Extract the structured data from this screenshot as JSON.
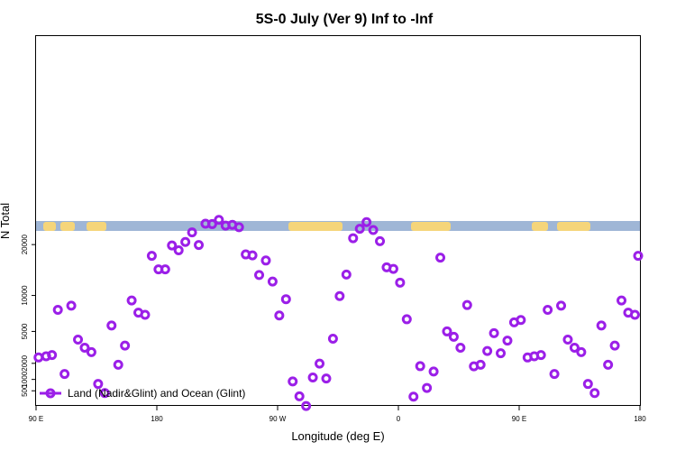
{
  "chart_data": {
    "type": "scatter",
    "title": "5S-0 July (Ver 9)   Inf to -Inf",
    "xlabel": "Longitude (deg E)",
    "ylabel": "N Total",
    "x_range": [
      90,
      450
    ],
    "x_ticks": [
      {
        "value": 90,
        "label": "90 E"
      },
      {
        "value": 162,
        "label": "180"
      },
      {
        "value": 234,
        "label": "90 W"
      },
      {
        "value": 306,
        "label": "0"
      },
      {
        "value": 378,
        "label": "90 E"
      },
      {
        "value": 450,
        "label": "180"
      }
    ],
    "y_scale": "sqrt",
    "y_ticks": [
      {
        "value": 500,
        "label": "500"
      },
      {
        "value": 1000,
        "label": "1000"
      },
      {
        "value": 2000,
        "label": "2000"
      },
      {
        "value": 5000,
        "label": "5000"
      },
      {
        "value": 10000,
        "label": "10000"
      },
      {
        "value": 20000,
        "label": "20000"
      }
    ],
    "legend": {
      "label": "Land (Nadir&Glint) and Ocean (Glint)",
      "position": "bottom-left",
      "color": "#9b1fe8"
    },
    "band": {
      "ocean_color": "#9fb6d6",
      "land_color": "#f5d57a"
    },
    "series": [
      {
        "name": "Land (Nadir&Glint) and Ocean (Glint)",
        "color": "#9b1fe8",
        "points": [
          [
            91.5,
            2450
          ],
          [
            96,
            2550
          ],
          [
            99.5,
            2650
          ],
          [
            103,
            7800
          ],
          [
            107,
            1300
          ],
          [
            111,
            8400
          ],
          [
            115,
            4100
          ],
          [
            119,
            3300
          ],
          [
            123,
            2900
          ],
          [
            127,
            780
          ],
          [
            131,
            420
          ],
          [
            135,
            5700
          ],
          [
            139,
            1900
          ],
          [
            143,
            3500
          ],
          [
            147,
            9200
          ],
          [
            151,
            7400
          ],
          [
            155,
            7100
          ],
          [
            159,
            17500
          ],
          [
            163,
            14700
          ],
          [
            167,
            14700
          ],
          [
            171,
            19800
          ],
          [
            175,
            18700
          ],
          [
            179,
            20600
          ],
          [
            183,
            22900
          ],
          [
            187,
            19900
          ],
          [
            191,
            25100
          ],
          [
            195,
            25000
          ],
          [
            199,
            26100
          ],
          [
            203,
            24600
          ],
          [
            207,
            24800
          ],
          [
            211,
            24200
          ],
          [
            215,
            17800
          ],
          [
            219,
            17600
          ],
          [
            223,
            13600
          ],
          [
            227,
            16500
          ],
          [
            231,
            12400
          ],
          [
            235,
            7000
          ],
          [
            239,
            9400
          ],
          [
            243,
            900
          ],
          [
            247,
            320
          ],
          [
            251,
            100
          ],
          [
            255,
            1100
          ],
          [
            259,
            1980
          ],
          [
            263,
            1050
          ],
          [
            267,
            4200
          ],
          [
            271,
            9900
          ],
          [
            275,
            13700
          ],
          [
            279,
            21500
          ],
          [
            283,
            23800
          ],
          [
            287,
            25500
          ],
          [
            291,
            23500
          ],
          [
            295,
            20800
          ],
          [
            299,
            15100
          ],
          [
            303,
            14800
          ],
          [
            307,
            12200
          ],
          [
            311,
            6500
          ],
          [
            315,
            310
          ],
          [
            319,
            1800
          ],
          [
            323,
            610
          ],
          [
            327,
            1450
          ],
          [
            331,
            17100
          ],
          [
            335,
            5000
          ],
          [
            339,
            4400
          ],
          [
            343,
            3300
          ],
          [
            347,
            8500
          ],
          [
            351,
            1790
          ],
          [
            355,
            1900
          ],
          [
            359,
            3000
          ],
          [
            363,
            4800
          ],
          [
            367,
            2800
          ],
          [
            371,
            4000
          ],
          [
            375,
            6100
          ],
          [
            379,
            6400
          ],
          [
            383,
            2450
          ],
          [
            387,
            2550
          ],
          [
            391,
            2650
          ],
          [
            395,
            7800
          ],
          [
            399,
            1300
          ],
          [
            403,
            8400
          ],
          [
            407,
            4100
          ],
          [
            411,
            3300
          ],
          [
            415,
            2900
          ],
          [
            419,
            780
          ],
          [
            423,
            420
          ],
          [
            427,
            5700
          ],
          [
            431,
            1900
          ],
          [
            435,
            3500
          ],
          [
            439,
            9200
          ],
          [
            443,
            7400
          ],
          [
            447,
            7100
          ],
          [
            450,
            17500
          ]
        ]
      }
    ]
  }
}
